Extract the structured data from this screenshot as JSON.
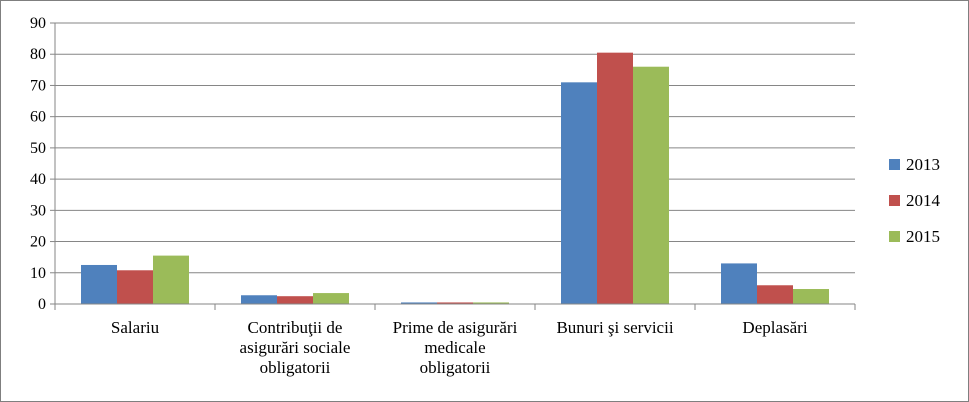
{
  "chart_data": {
    "type": "bar",
    "categories": [
      [
        "Salariu"
      ],
      [
        "Contribuţii de",
        "asigurări sociale",
        "obligatorii"
      ],
      [
        "Prime de asigurări",
        "medicale",
        "obligatorii"
      ],
      [
        "Bunuri şi servicii"
      ],
      [
        "Deplasări"
      ]
    ],
    "series": [
      {
        "name": "2013",
        "color": "#4f81bd",
        "values": [
          12.5,
          2.8,
          0.5,
          71,
          13
        ]
      },
      {
        "name": "2014",
        "color": "#c0504d",
        "values": [
          10.8,
          2.5,
          0.5,
          80.5,
          6
        ]
      },
      {
        "name": "2015",
        "color": "#9bbb59",
        "values": [
          15.5,
          3.5,
          0.5,
          76,
          4.8
        ]
      }
    ],
    "ylim": [
      0,
      90
    ],
    "yticks": [
      0,
      10,
      20,
      30,
      40,
      50,
      60,
      70,
      80,
      90
    ],
    "grid": true,
    "legend": "right"
  }
}
